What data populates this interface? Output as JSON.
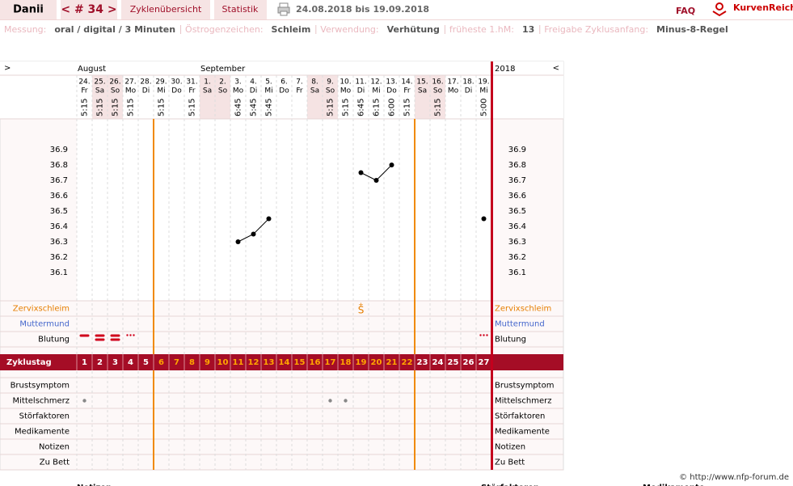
{
  "header": {
    "user": "Danii",
    "cycle": "< # 34 >",
    "tabs": [
      "Zyklenübersicht",
      "Statistik"
    ],
    "date_range": "24.08.2018 bis 19.09.2018",
    "faq": "FAQ",
    "logo": "KurvenReich"
  },
  "info": [
    {
      "label": "Messung:",
      "value": "oral / digital / 3 Minuten"
    },
    {
      "label": "Östrogenzeichen:",
      "value": "Schleim"
    },
    {
      "label": "Verwendung:",
      "value": "Verhütung"
    },
    {
      "label": "früheste 1.hM:",
      "value": "13"
    },
    {
      "label": "Freigabe Zyklusanfang:",
      "value": "Minus-8-Regel"
    }
  ],
  "chart_data": {
    "type": "line",
    "nav_left": ">",
    "nav_right": "<",
    "year": "2018",
    "months": [
      "August",
      null,
      null,
      null,
      null,
      null,
      null,
      null,
      "September",
      null,
      null,
      null,
      null,
      null,
      null,
      null,
      null,
      null,
      null,
      null,
      null,
      null,
      null,
      null,
      null,
      null,
      null
    ],
    "dates": [
      "24.",
      "25.",
      "26.",
      "27.",
      "28.",
      "29.",
      "30.",
      "31.",
      "1.",
      "2.",
      "3.",
      "4.",
      "5.",
      "6.",
      "7.",
      "8.",
      "9.",
      "10.",
      "11.",
      "12.",
      "13.",
      "14.",
      "15.",
      "16.",
      "17.",
      "18.",
      "19."
    ],
    "weekdays": [
      "Fr",
      "Sa",
      "So",
      "Mo",
      "Di",
      "Mi",
      "Do",
      "Fr",
      "Sa",
      "So",
      "Mo",
      "Di",
      "Mi",
      "Do",
      "Fr",
      "Sa",
      "So",
      "Mo",
      "Di",
      "Mi",
      "Do",
      "Fr",
      "Sa",
      "So",
      "Mo",
      "Di",
      "Mi"
    ],
    "highlight_weekdays": [
      "Sa",
      "So"
    ],
    "times": [
      "5:15",
      "5:15",
      "5:15",
      "5:15",
      null,
      "5:15",
      null,
      "5:15",
      null,
      null,
      "6:45",
      "5:45",
      "5:45",
      null,
      null,
      null,
      "5:15",
      "5:15",
      "6:45",
      "6:15",
      "6:00",
      "5:15",
      null,
      "5:15",
      null,
      null,
      "5:00"
    ],
    "temperatures": [
      null,
      null,
      null,
      null,
      null,
      null,
      null,
      null,
      null,
      null,
      36.3,
      36.35,
      36.45,
      null,
      null,
      null,
      null,
      null,
      36.75,
      36.7,
      36.8,
      null,
      null,
      null,
      null,
      null,
      36.45
    ],
    "ylim": [
      36.0,
      37.0
    ],
    "yticks": [
      36.1,
      36.2,
      36.3,
      36.4,
      36.5,
      36.6,
      36.7,
      36.8,
      36.9
    ],
    "color": "#000000",
    "line_color": "#000000",
    "rows_top": [
      "Zervixschleim",
      "Muttermund",
      "Blutung"
    ],
    "cervical_mucus": [
      null,
      null,
      null,
      null,
      null,
      null,
      null,
      null,
      null,
      null,
      null,
      null,
      null,
      null,
      null,
      null,
      null,
      null,
      "S",
      null,
      null,
      null,
      null,
      null,
      null,
      null,
      null
    ],
    "cervical_mucus_mod": [
      null,
      null,
      null,
      null,
      null,
      null,
      null,
      null,
      null,
      null,
      null,
      null,
      null,
      null,
      null,
      null,
      null,
      null,
      "+",
      null,
      null,
      null,
      null,
      null,
      null,
      null,
      null
    ],
    "bleeding": [
      2,
      3,
      3,
      1,
      null,
      null,
      null,
      null,
      null,
      null,
      null,
      null,
      null,
      null,
      null,
      null,
      null,
      null,
      null,
      null,
      null,
      null,
      null,
      null,
      null,
      null,
      1
    ],
    "cycle_day_label": "Zyklustag",
    "cycle_days": [
      1,
      2,
      3,
      4,
      5,
      6,
      7,
      8,
      9,
      10,
      11,
      12,
      13,
      14,
      15,
      16,
      17,
      18,
      19,
      20,
      21,
      22,
      23,
      24,
      25,
      26,
      27
    ],
    "phase_lines": [
      5,
      22
    ],
    "rows_bottom": [
      "Brustsymptom",
      "Mittelschmerz",
      "Störfaktoren",
      "Medikamente",
      "Notizen",
      "Zu Bett"
    ],
    "mittelschmerz": [
      true,
      null,
      null,
      null,
      null,
      null,
      null,
      null,
      null,
      null,
      null,
      null,
      null,
      null,
      null,
      null,
      true,
      true,
      null,
      null,
      null,
      null,
      null,
      null,
      null,
      null,
      null
    ]
  },
  "footer": "© http://www.nfp-forum.de",
  "below": [
    "Notizen",
    "Störfaktoren",
    "Medikamente"
  ]
}
